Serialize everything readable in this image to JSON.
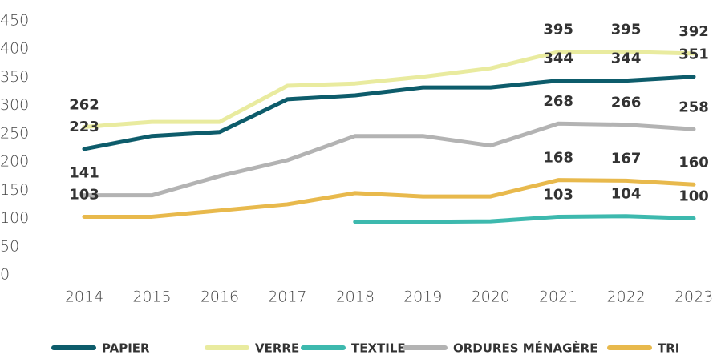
{
  "chart_data": {
    "type": "line",
    "x": [
      "2014",
      "2015",
      "2016",
      "2017",
      "2018",
      "2019",
      "2020",
      "2021",
      "2022",
      "2023"
    ],
    "ylim": [
      0,
      450
    ],
    "yticks": [
      0,
      50,
      100,
      150,
      200,
      250,
      300,
      350,
      400,
      450
    ],
    "grid": false,
    "labeled_points": [
      0,
      7,
      8,
      9
    ],
    "legend": "bottom",
    "series": [
      {
        "name": "PAPIER",
        "color": "#0d5c6b",
        "values": [
          223,
          246,
          253,
          311,
          318,
          332,
          332,
          344,
          344,
          351
        ]
      },
      {
        "name": "VERRE",
        "color": "#e9eb9f",
        "values": [
          262,
          271,
          271,
          335,
          339,
          351,
          366,
          395,
          395,
          392
        ]
      },
      {
        "name": "TEXTILE",
        "color": "#3db9ae",
        "values": [
          null,
          null,
          null,
          null,
          94,
          94,
          95,
          103,
          104,
          100
        ]
      },
      {
        "name": "ORDURES MÉNAGÈRE",
        "color": "#b3b3b3",
        "values": [
          141,
          141,
          175,
          203,
          246,
          246,
          229,
          268,
          266,
          258
        ]
      },
      {
        "name": "TRI",
        "color": "#e8b94c",
        "values": [
          103,
          103,
          114,
          125,
          145,
          139,
          139,
          168,
          167,
          160
        ]
      }
    ]
  }
}
